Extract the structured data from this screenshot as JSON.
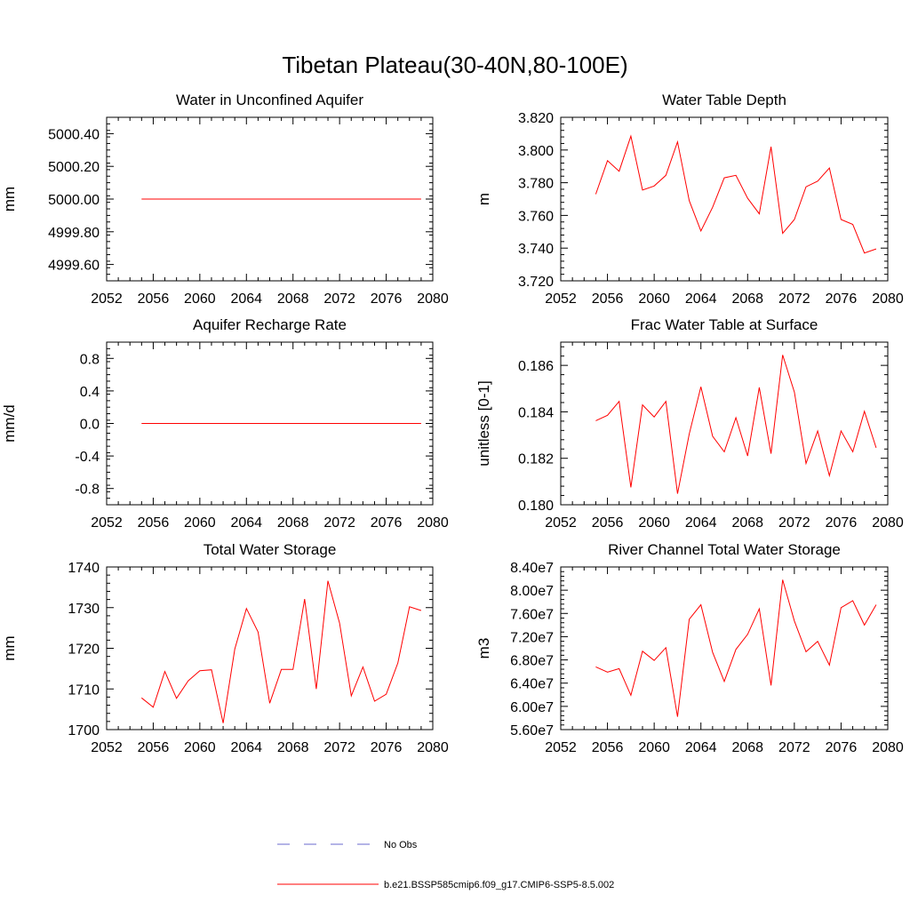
{
  "figure": {
    "title": "Tibetan Plateau(30-40N,80-100E)"
  },
  "colors": {
    "model_line": "#ff0000",
    "obs_line": "#6a6acd",
    "axis": "#000000"
  },
  "legend": {
    "items": [
      {
        "label": "No Obs",
        "style": "dashed",
        "color": "#6a6acd"
      },
      {
        "label": "b.e21.BSSP585cmip6.f09_g17.CMIP6-SSP5-8.5.002",
        "style": "solid",
        "color": "#ff0000"
      }
    ]
  },
  "chart_data": [
    {
      "type": "line",
      "title": "Water in Unconfined Aquifer",
      "xlabel": "",
      "ylabel": "mm",
      "xlim": [
        2052,
        2080
      ],
      "ylim": [
        4999.5,
        5000.5
      ],
      "xticks": [
        2052,
        2056,
        2060,
        2064,
        2068,
        2072,
        2076,
        2080
      ],
      "xtick_labels": [
        "2052",
        "2056",
        "2060",
        "2064",
        "2068",
        "2072",
        "2076",
        "2080"
      ],
      "yticks": [
        4999.6,
        4999.8,
        5000.0,
        5000.2,
        5000.4
      ],
      "ytick_labels": [
        "4999.60",
        "4999.80",
        "5000.00",
        "5000.20",
        "5000.40"
      ],
      "x": [
        2055,
        2056,
        2057,
        2058,
        2059,
        2060,
        2061,
        2062,
        2063,
        2064,
        2065,
        2066,
        2067,
        2068,
        2069,
        2070,
        2071,
        2072,
        2073,
        2074,
        2075,
        2076,
        2077,
        2078,
        2079
      ],
      "series": [
        {
          "name": "b.e21.BSSP585cmip6.f09_g17.CMIP6-SSP5-8.5.002",
          "values": [
            5000,
            5000,
            5000,
            5000,
            5000,
            5000,
            5000,
            5000,
            5000,
            5000,
            5000,
            5000,
            5000,
            5000,
            5000,
            5000,
            5000,
            5000,
            5000,
            5000,
            5000,
            5000,
            5000,
            5000,
            5000
          ]
        }
      ]
    },
    {
      "type": "line",
      "title": "Water Table Depth",
      "xlabel": "",
      "ylabel": "m",
      "xlim": [
        2052,
        2080
      ],
      "ylim": [
        3.72,
        3.82
      ],
      "xticks": [
        2052,
        2056,
        2060,
        2064,
        2068,
        2072,
        2076,
        2080
      ],
      "xtick_labels": [
        "2052",
        "2056",
        "2060",
        "2064",
        "2068",
        "2072",
        "2076",
        "2080"
      ],
      "yticks": [
        3.72,
        3.74,
        3.76,
        3.78,
        3.8,
        3.82
      ],
      "ytick_labels": [
        "3.720",
        "3.740",
        "3.760",
        "3.780",
        "3.800",
        "3.820"
      ],
      "x": [
        2055,
        2056,
        2057,
        2058,
        2059,
        2060,
        2061,
        2062,
        2063,
        2064,
        2065,
        2066,
        2067,
        2068,
        2069,
        2070,
        2071,
        2072,
        2073,
        2074,
        2075,
        2076,
        2077,
        2078,
        2079
      ],
      "series": [
        {
          "name": "b.e21.BSSP585cmip6.f09_g17.CMIP6-SSP5-8.5.002",
          "values": [
            3.773,
            3.7935,
            3.787,
            3.8085,
            3.7755,
            3.778,
            3.7845,
            3.805,
            3.769,
            3.7505,
            3.765,
            3.783,
            3.7845,
            3.7705,
            3.761,
            3.802,
            3.749,
            3.7575,
            3.7775,
            3.781,
            3.789,
            3.7575,
            3.7545,
            3.737,
            3.7395
          ]
        }
      ]
    },
    {
      "type": "line",
      "title": "Aquifer Recharge Rate",
      "xlabel": "",
      "ylabel": "mm/d",
      "xlim": [
        2052,
        2080
      ],
      "ylim": [
        -1.0,
        1.0
      ],
      "xticks": [
        2052,
        2056,
        2060,
        2064,
        2068,
        2072,
        2076,
        2080
      ],
      "xtick_labels": [
        "2052",
        "2056",
        "2060",
        "2064",
        "2068",
        "2072",
        "2076",
        "2080"
      ],
      "yticks": [
        -0.8,
        -0.4,
        0.0,
        0.4,
        0.8
      ],
      "ytick_labels": [
        "-0.8",
        "-0.4",
        "0.0",
        "0.4",
        "0.8"
      ],
      "x": [
        2055,
        2056,
        2057,
        2058,
        2059,
        2060,
        2061,
        2062,
        2063,
        2064,
        2065,
        2066,
        2067,
        2068,
        2069,
        2070,
        2071,
        2072,
        2073,
        2074,
        2075,
        2076,
        2077,
        2078,
        2079
      ],
      "series": [
        {
          "name": "b.e21.BSSP585cmip6.f09_g17.CMIP6-SSP5-8.5.002",
          "values": [
            0,
            0,
            0,
            0,
            0,
            0,
            0,
            0,
            0,
            0,
            0,
            0,
            0,
            0,
            0,
            0,
            0,
            0,
            0,
            0,
            0,
            0,
            0,
            0,
            0
          ]
        }
      ]
    },
    {
      "type": "line",
      "title": "Frac Water Table at Surface",
      "xlabel": "",
      "ylabel": "unitless [0-1]",
      "xlim": [
        2052,
        2080
      ],
      "ylim": [
        0.18,
        0.187
      ],
      "xticks": [
        2052,
        2056,
        2060,
        2064,
        2068,
        2072,
        2076,
        2080
      ],
      "xtick_labels": [
        "2052",
        "2056",
        "2060",
        "2064",
        "2068",
        "2072",
        "2076",
        "2080"
      ],
      "yticks": [
        0.18,
        0.182,
        0.184,
        0.186
      ],
      "ytick_labels": [
        "0.180",
        "0.182",
        "0.184",
        "0.186"
      ],
      "x": [
        2055,
        2056,
        2057,
        2058,
        2059,
        2060,
        2061,
        2062,
        2063,
        2064,
        2065,
        2066,
        2067,
        2068,
        2069,
        2070,
        2071,
        2072,
        2073,
        2074,
        2075,
        2076,
        2077,
        2078,
        2079
      ],
      "series": [
        {
          "name": "b.e21.BSSP585cmip6.f09_g17.CMIP6-SSP5-8.5.002",
          "values": [
            0.18362,
            0.18385,
            0.18445,
            0.18075,
            0.1843,
            0.18378,
            0.18445,
            0.18048,
            0.18305,
            0.18508,
            0.18295,
            0.18228,
            0.18375,
            0.1821,
            0.18505,
            0.1822,
            0.18645,
            0.18485,
            0.18178,
            0.18318,
            0.18125,
            0.18318,
            0.18228,
            0.18402,
            0.18245
          ]
        }
      ]
    },
    {
      "type": "line",
      "title": "Total Water Storage",
      "xlabel": "",
      "ylabel": "mm",
      "xlim": [
        2052,
        2080
      ],
      "ylim": [
        1700,
        1740
      ],
      "xticks": [
        2052,
        2056,
        2060,
        2064,
        2068,
        2072,
        2076,
        2080
      ],
      "xtick_labels": [
        "2052",
        "2056",
        "2060",
        "2064",
        "2068",
        "2072",
        "2076",
        "2080"
      ],
      "yticks": [
        1700,
        1710,
        1720,
        1730,
        1740
      ],
      "ytick_labels": [
        "1700",
        "1710",
        "1720",
        "1730",
        "1740"
      ],
      "x": [
        2055,
        2056,
        2057,
        2058,
        2059,
        2060,
        2061,
        2062,
        2063,
        2064,
        2065,
        2066,
        2067,
        2068,
        2069,
        2070,
        2071,
        2072,
        2073,
        2074,
        2075,
        2076,
        2077,
        2078,
        2079
      ],
      "series": [
        {
          "name": "b.e21.BSSP585cmip6.f09_g17.CMIP6-SSP5-8.5.002",
          "values": [
            1707.8,
            1705.5,
            1714.3,
            1707.7,
            1712.0,
            1714.5,
            1714.7,
            1701.6,
            1719.8,
            1729.8,
            1724.0,
            1706.5,
            1714.8,
            1714.8,
            1732.1,
            1710.0,
            1736.6,
            1726.2,
            1708.3,
            1715.4,
            1707.0,
            1708.7,
            1716.4,
            1730.2,
            1729.3
          ]
        }
      ]
    },
    {
      "type": "line",
      "title": "River Channel Total Water Storage",
      "xlabel": "",
      "ylabel": "m3",
      "xlim": [
        2052,
        2080
      ],
      "ylim": [
        56000000.0,
        84000000.0
      ],
      "xticks": [
        2052,
        2056,
        2060,
        2064,
        2068,
        2072,
        2076,
        2080
      ],
      "xtick_labels": [
        "2052",
        "2056",
        "2060",
        "2064",
        "2068",
        "2072",
        "2076",
        "2080"
      ],
      "yticks": [
        56000000.0,
        60000000.0,
        64000000.0,
        68000000.0,
        72000000.0,
        76000000.0,
        80000000.0,
        84000000.0
      ],
      "ytick_labels": [
        "5.60e7",
        "6.00e7",
        "6.40e7",
        "6.80e7",
        "7.20e7",
        "7.60e7",
        "8.00e7",
        "8.40e7"
      ],
      "x": [
        2055,
        2056,
        2057,
        2058,
        2059,
        2060,
        2061,
        2062,
        2063,
        2064,
        2065,
        2066,
        2067,
        2068,
        2069,
        2070,
        2071,
        2072,
        2073,
        2074,
        2075,
        2076,
        2077,
        2078,
        2079
      ],
      "series": [
        {
          "name": "b.e21.BSSP585cmip6.f09_g17.CMIP6-SSP5-8.5.002",
          "values": [
            66800000.0,
            65900000.0,
            66500000.0,
            61900000.0,
            69500000.0,
            67900000.0,
            70100000.0,
            58200000.0,
            75000000.0,
            77500000.0,
            69300000.0,
            64300000.0,
            69800000.0,
            72400000.0,
            76800000.0,
            63600000.0,
            81800000.0,
            74700000.0,
            69400000.0,
            71200000.0,
            67100000.0,
            77000000.0,
            78200000.0,
            74000000.0,
            77500000.0
          ]
        }
      ]
    }
  ]
}
